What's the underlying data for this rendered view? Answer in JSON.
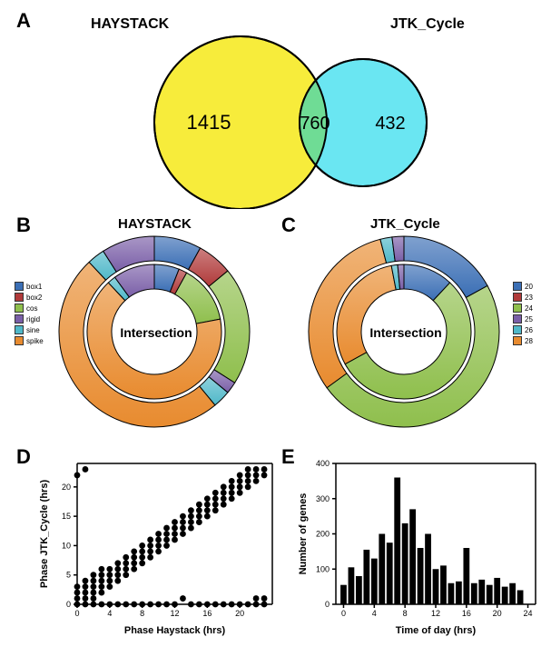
{
  "panelA": {
    "label": "A",
    "left_title": "HAYSTACK",
    "right_title": "JTK_Cycle",
    "left_value": "1415",
    "mid_value": "760",
    "right_value": "432",
    "left_color": "#f7ec3b",
    "right_color": "#6ae6f2",
    "overlap_color": "#6fdc95",
    "stroke": "#000000"
  },
  "panelB": {
    "label": "B",
    "title": "HAYSTACK",
    "center_label": "Intersection",
    "legend": [
      {
        "name": "box1",
        "color": "#3b6fb5"
      },
      {
        "name": "box2",
        "color": "#b03a3a"
      },
      {
        "name": "cos",
        "color": "#8fbf4d"
      },
      {
        "name": "rigid",
        "color": "#7a5fa8"
      },
      {
        "name": "sine",
        "color": "#4fb8c9"
      },
      {
        "name": "spike",
        "color": "#e88b2f"
      }
    ],
    "outer": [
      {
        "color": "#3b6fb5",
        "frac": 0.08
      },
      {
        "color": "#b03a3a",
        "frac": 0.06
      },
      {
        "color": "#8fbf4d",
        "frac": 0.2
      },
      {
        "color": "#7a5fa8",
        "frac": 0.02
      },
      {
        "color": "#4fb8c9",
        "frac": 0.03
      },
      {
        "color": "#e88b2f",
        "frac": 0.49
      },
      {
        "color": "#4fb8c9",
        "frac": 0.03
      },
      {
        "color": "#7a5fa8",
        "frac": 0.09
      }
    ],
    "inner": [
      {
        "color": "#3b6fb5",
        "frac": 0.06
      },
      {
        "color": "#b03a3a",
        "frac": 0.02
      },
      {
        "color": "#8fbf4d",
        "frac": 0.14
      },
      {
        "color": "#e88b2f",
        "frac": 0.66
      },
      {
        "color": "#4fb8c9",
        "frac": 0.02
      },
      {
        "color": "#7a5fa8",
        "frac": 0.1
      }
    ]
  },
  "panelC": {
    "label": "C",
    "title": "JTK_Cycle",
    "center_label": "Intersection",
    "legend": [
      {
        "name": "20",
        "color": "#3b6fb5"
      },
      {
        "name": "23",
        "color": "#b03a3a"
      },
      {
        "name": "24",
        "color": "#8fbf4d"
      },
      {
        "name": "25",
        "color": "#7a5fa8"
      },
      {
        "name": "26",
        "color": "#4fb8c9"
      },
      {
        "name": "28",
        "color": "#e88b2f"
      }
    ],
    "outer": [
      {
        "color": "#3b6fb5",
        "frac": 0.17
      },
      {
        "color": "#8fbf4d",
        "frac": 0.48
      },
      {
        "color": "#e88b2f",
        "frac": 0.31
      },
      {
        "color": "#4fb8c9",
        "frac": 0.02
      },
      {
        "color": "#7a5fa8",
        "frac": 0.02
      }
    ],
    "inner": [
      {
        "color": "#3b6fb5",
        "frac": 0.12
      },
      {
        "color": "#8fbf4d",
        "frac": 0.55
      },
      {
        "color": "#e88b2f",
        "frac": 0.3
      },
      {
        "color": "#4fb8c9",
        "frac": 0.015
      },
      {
        "color": "#7a5fa8",
        "frac": 0.015
      }
    ]
  },
  "panelD": {
    "label": "D",
    "xlabel": "Phase Haystack (hrs)",
    "ylabel": "Phase JTK_Cycle (hrs)",
    "xlim": [
      0,
      24
    ],
    "ylim": [
      0,
      24
    ],
    "xticks": [
      0,
      4,
      8,
      12,
      16,
      20
    ],
    "yticks": [
      0,
      5,
      10,
      15,
      20
    ],
    "point_color": "#000000",
    "point_radius": 3.4,
    "points": [
      [
        0,
        0
      ],
      [
        0,
        1
      ],
      [
        0,
        2
      ],
      [
        0,
        3
      ],
      [
        0,
        22
      ],
      [
        1,
        0
      ],
      [
        1,
        1
      ],
      [
        1,
        2
      ],
      [
        1,
        3
      ],
      [
        1,
        4
      ],
      [
        1,
        23
      ],
      [
        2,
        1
      ],
      [
        2,
        2
      ],
      [
        2,
        3
      ],
      [
        2,
        4
      ],
      [
        2,
        5
      ],
      [
        3,
        2
      ],
      [
        3,
        3
      ],
      [
        3,
        4
      ],
      [
        3,
        5
      ],
      [
        3,
        6
      ],
      [
        4,
        3
      ],
      [
        4,
        4
      ],
      [
        4,
        5
      ],
      [
        4,
        6
      ],
      [
        5,
        4
      ],
      [
        5,
        5
      ],
      [
        5,
        6
      ],
      [
        5,
        7
      ],
      [
        6,
        5
      ],
      [
        6,
        6
      ],
      [
        6,
        7
      ],
      [
        6,
        8
      ],
      [
        7,
        6
      ],
      [
        7,
        7
      ],
      [
        7,
        8
      ],
      [
        7,
        9
      ],
      [
        8,
        7
      ],
      [
        8,
        8
      ],
      [
        8,
        9
      ],
      [
        8,
        10
      ],
      [
        9,
        8
      ],
      [
        9,
        9
      ],
      [
        9,
        10
      ],
      [
        9,
        11
      ],
      [
        10,
        9
      ],
      [
        10,
        10
      ],
      [
        10,
        11
      ],
      [
        10,
        12
      ],
      [
        11,
        10
      ],
      [
        11,
        11
      ],
      [
        11,
        12
      ],
      [
        11,
        13
      ],
      [
        12,
        11
      ],
      [
        12,
        12
      ],
      [
        12,
        13
      ],
      [
        12,
        14
      ],
      [
        13,
        12
      ],
      [
        13,
        13
      ],
      [
        13,
        14
      ],
      [
        13,
        15
      ],
      [
        14,
        13
      ],
      [
        14,
        14
      ],
      [
        14,
        15
      ],
      [
        14,
        16
      ],
      [
        15,
        14
      ],
      [
        15,
        15
      ],
      [
        15,
        16
      ],
      [
        15,
        17
      ],
      [
        16,
        15
      ],
      [
        16,
        16
      ],
      [
        16,
        17
      ],
      [
        16,
        18
      ],
      [
        17,
        16
      ],
      [
        17,
        17
      ],
      [
        17,
        18
      ],
      [
        17,
        19
      ],
      [
        18,
        17
      ],
      [
        18,
        18
      ],
      [
        18,
        19
      ],
      [
        18,
        20
      ],
      [
        19,
        18
      ],
      [
        19,
        19
      ],
      [
        19,
        20
      ],
      [
        19,
        21
      ],
      [
        20,
        19
      ],
      [
        20,
        20
      ],
      [
        20,
        21
      ],
      [
        20,
        22
      ],
      [
        21,
        20
      ],
      [
        21,
        21
      ],
      [
        21,
        22
      ],
      [
        21,
        23
      ],
      [
        22,
        21
      ],
      [
        22,
        22
      ],
      [
        22,
        23
      ],
      [
        22,
        0
      ],
      [
        23,
        22
      ],
      [
        23,
        23
      ],
      [
        23,
        0
      ],
      [
        23,
        1
      ],
      [
        2,
        0
      ],
      [
        4,
        0
      ],
      [
        6,
        0
      ],
      [
        8,
        0
      ],
      [
        10,
        0
      ],
      [
        12,
        0
      ],
      [
        14,
        0
      ],
      [
        16,
        0
      ],
      [
        18,
        0
      ],
      [
        20,
        0
      ],
      [
        22,
        1
      ],
      [
        3,
        0
      ],
      [
        5,
        0
      ],
      [
        7,
        0
      ],
      [
        9,
        0
      ],
      [
        11,
        0
      ],
      [
        13,
        1
      ],
      [
        15,
        0
      ],
      [
        17,
        0
      ],
      [
        19,
        0
      ],
      [
        21,
        0
      ]
    ]
  },
  "panelE": {
    "label": "E",
    "xlabel": "Time of day (hrs)",
    "ylabel": "Number of genes",
    "xlim": [
      -1,
      25
    ],
    "ylim": [
      0,
      400
    ],
    "xticks": [
      0,
      4,
      8,
      12,
      16,
      20,
      24
    ],
    "yticks": [
      0,
      100,
      200,
      300,
      400
    ],
    "bar_color": "#000000",
    "bars": [
      {
        "x": 0,
        "y": 55
      },
      {
        "x": 1,
        "y": 105
      },
      {
        "x": 2,
        "y": 80
      },
      {
        "x": 3,
        "y": 155
      },
      {
        "x": 4,
        "y": 130
      },
      {
        "x": 5,
        "y": 200
      },
      {
        "x": 6,
        "y": 175
      },
      {
        "x": 7,
        "y": 360
      },
      {
        "x": 8,
        "y": 230
      },
      {
        "x": 9,
        "y": 270
      },
      {
        "x": 10,
        "y": 160
      },
      {
        "x": 11,
        "y": 200
      },
      {
        "x": 12,
        "y": 100
      },
      {
        "x": 13,
        "y": 110
      },
      {
        "x": 14,
        "y": 60
      },
      {
        "x": 15,
        "y": 65
      },
      {
        "x": 16,
        "y": 160
      },
      {
        "x": 17,
        "y": 60
      },
      {
        "x": 18,
        "y": 70
      },
      {
        "x": 19,
        "y": 55
      },
      {
        "x": 20,
        "y": 75
      },
      {
        "x": 21,
        "y": 50
      },
      {
        "x": 22,
        "y": 60
      },
      {
        "x": 23,
        "y": 40
      }
    ]
  },
  "axis_font_size": 11,
  "tick_font_size": 9
}
